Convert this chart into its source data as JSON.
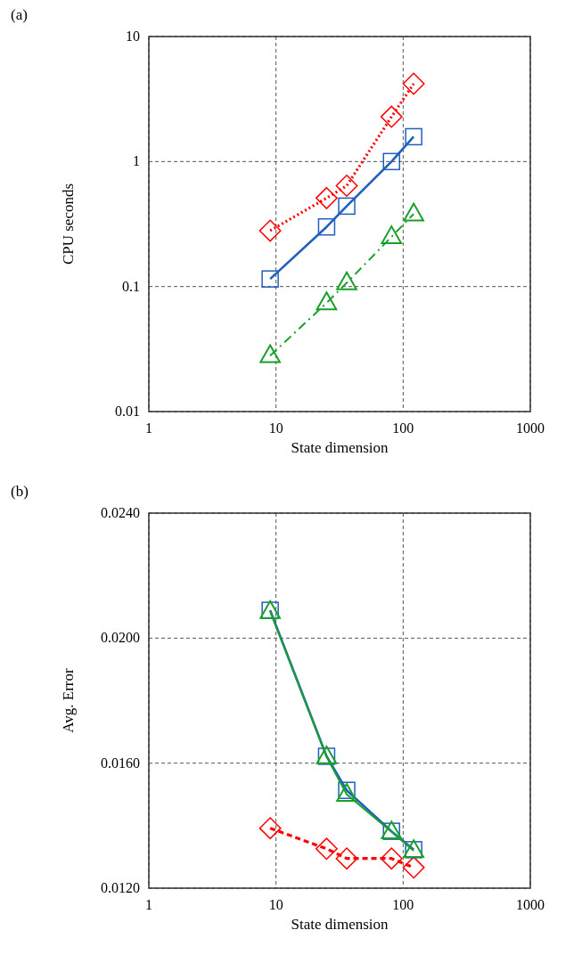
{
  "chart_data": [
    {
      "type": "line",
      "title": "(a)",
      "xlabel": "State dimension",
      "ylabel": "CPU seconds",
      "log": "xy",
      "grid": true,
      "xlim": [
        1,
        1000
      ],
      "xticks": [
        1,
        10,
        100,
        1000
      ],
      "ylim": [
        0.01,
        10
      ],
      "yticks": [
        0.01,
        0.1,
        1,
        10
      ],
      "x": [
        9,
        25,
        36,
        81,
        121
      ],
      "series": [
        {
          "color": "#ff0000",
          "values": [
            0.28,
            0.51,
            0.64,
            2.28,
            4.19
          ],
          "marker": "diamond",
          "line_style": "dotted"
        },
        {
          "color": "#1f5fc0",
          "values": [
            0.115,
            0.3,
            0.44,
            1.0,
            1.58
          ],
          "marker": "square",
          "line_style": "solid"
        },
        {
          "color": "#1aa02a",
          "values": [
            0.028,
            0.074,
            0.107,
            0.25,
            0.38
          ],
          "marker": "triangle",
          "line_style": "dashdot"
        }
      ]
    },
    {
      "type": "line",
      "title": "(b)",
      "xlabel": "State dimension",
      "ylabel": "Avg. Error",
      "log": "x",
      "grid": true,
      "xlim": [
        1,
        1000
      ],
      "xticks": [
        1,
        10,
        100,
        1000
      ],
      "ylim": [
        0.012,
        0.024
      ],
      "yticks": [
        {
          "value": 0.012,
          "label": "0.0120"
        },
        {
          "value": 0.016,
          "label": "0.0160"
        },
        {
          "value": 0.02,
          "label": "0.0200"
        },
        {
          "value": 0.024,
          "label": "0.0240"
        }
      ],
      "x": [
        9,
        25,
        36,
        81,
        121
      ],
      "series": [
        {
          "color": "#ff0000",
          "values": [
            0.01392,
            0.01326,
            0.01295,
            0.01295,
            0.01266
          ],
          "marker": "diamond",
          "line_style": "dashed"
        },
        {
          "color": "#1f5fc0",
          "values": [
            0.02089,
            0.01622,
            0.01513,
            0.01382,
            0.01323
          ],
          "marker": "square",
          "line_style": "solid"
        },
        {
          "color": "#1aa02a",
          "values": [
            0.02085,
            0.0162,
            0.015,
            0.0138,
            0.0132
          ],
          "marker": "triangle",
          "line_style": "solid"
        }
      ]
    }
  ]
}
